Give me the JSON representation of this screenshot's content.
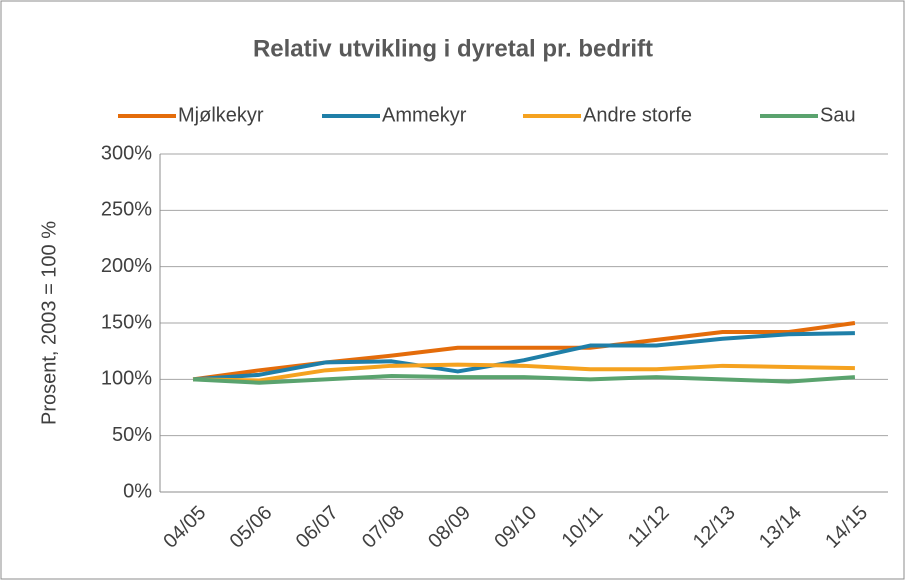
{
  "chart_data": {
    "type": "line",
    "title": "Relativ utvikling i dyretal pr. bedrift",
    "y_label": "Prosent, 2003 = 100 %",
    "categories": [
      "04/05",
      "05/06",
      "06/07",
      "07/08",
      "08/09",
      "09/10",
      "10/11",
      "11/12",
      "12/13",
      "13/14",
      "14/15"
    ],
    "series": [
      {
        "name": "Mjølkekyr",
        "color": "#e46c0a",
        "values": [
          100,
          108,
          115,
          121,
          128,
          128,
          128,
          135,
          142,
          142,
          150
        ]
      },
      {
        "name": "Ammekyr",
        "color": "#1f7fa8",
        "values": [
          100,
          104,
          115,
          116,
          107,
          117,
          130,
          130,
          136,
          140,
          141
        ]
      },
      {
        "name": "Andre storfe",
        "color": "#f5a21f",
        "values": [
          100,
          99,
          108,
          112,
          113,
          112,
          109,
          109,
          112,
          111,
          110
        ]
      },
      {
        "name": "Sau",
        "color": "#5aa36e",
        "values": [
          100,
          97,
          100,
          103,
          102,
          102,
          100,
          102,
          100,
          98,
          102
        ]
      }
    ],
    "ylim": [
      0,
      300
    ],
    "yticks": [
      {
        "value": 0,
        "label": "0%"
      },
      {
        "value": 50,
        "label": "50%"
      },
      {
        "value": 100,
        "label": "100%"
      },
      {
        "value": 150,
        "label": "150%"
      },
      {
        "value": 200,
        "label": "200%"
      },
      {
        "value": 250,
        "label": "250%"
      },
      {
        "value": 300,
        "label": "300%"
      }
    ],
    "grid": true,
    "legend": "top"
  }
}
